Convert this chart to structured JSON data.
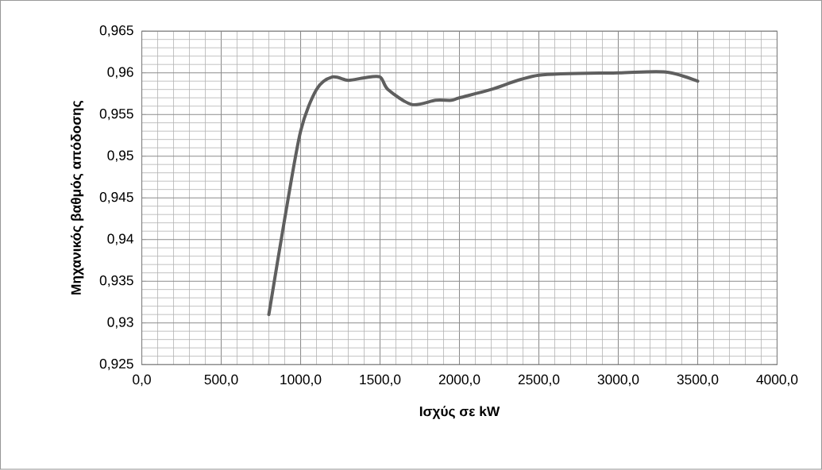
{
  "chart_data": {
    "type": "line",
    "xlabel": "Ισχύς σε kW",
    "ylabel": "Μηχανικός βαθμός απόδοσης",
    "x": [
      800,
      900,
      1000,
      1100,
      1200,
      1300,
      1400,
      1500,
      1550,
      1700,
      1850,
      1950,
      2000,
      2200,
      2500,
      3000,
      3300,
      3500
    ],
    "series": [
      {
        "color": "#5f5f5f",
        "values": [
          0.931,
          0.9425,
          0.953,
          0.958,
          0.9595,
          0.9591,
          0.9594,
          0.9595,
          0.958,
          0.9562,
          0.9567,
          0.9567,
          0.957,
          0.958,
          0.9597,
          0.96,
          0.9601,
          0.959
        ]
      }
    ],
    "xlim": [
      0,
      4000
    ],
    "ylim": [
      0.925,
      0.965
    ],
    "xticks": [
      {
        "value": 0,
        "label": "0,0"
      },
      {
        "value": 500,
        "label": "500,0"
      },
      {
        "value": 1000,
        "label": "1000,0"
      },
      {
        "value": 1500,
        "label": "1500,0"
      },
      {
        "value": 2000,
        "label": "2000,0"
      },
      {
        "value": 2500,
        "label": "2500,0"
      },
      {
        "value": 3000,
        "label": "3000,0"
      },
      {
        "value": 3500,
        "label": "3500,0"
      },
      {
        "value": 4000,
        "label": "4000,0"
      }
    ],
    "yticks": [
      {
        "value": 0.925,
        "label": "0,925"
      },
      {
        "value": 0.93,
        "label": "0,93"
      },
      {
        "value": 0.935,
        "label": "0,935"
      },
      {
        "value": 0.94,
        "label": "0,94"
      },
      {
        "value": 0.945,
        "label": "0,945"
      },
      {
        "value": 0.95,
        "label": "0,95"
      },
      {
        "value": 0.955,
        "label": "0,955"
      },
      {
        "value": 0.96,
        "label": "0,96"
      },
      {
        "value": 0.965,
        "label": "0,965"
      }
    ],
    "grid": true,
    "marker": "none",
    "line_style": "solid"
  }
}
